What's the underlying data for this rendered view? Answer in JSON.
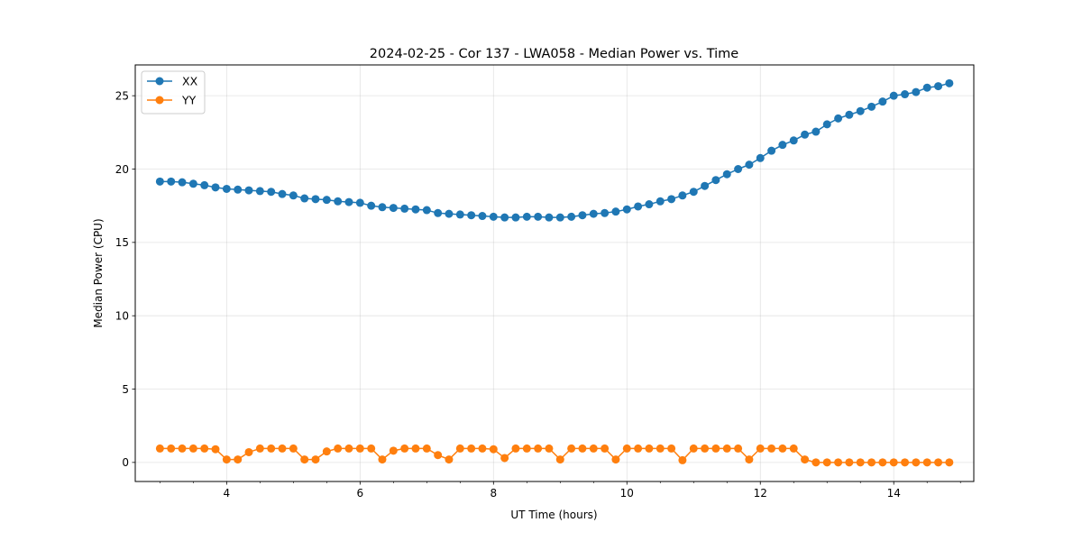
{
  "chart_data": {
    "type": "line",
    "title": "2024-02-25 - Cor 137 - LWA058 - Median Power vs. Time",
    "xlabel": "UT Time (hours)",
    "ylabel": "Median Power (CPU)",
    "xlim": [
      2.63,
      15.2
    ],
    "ylim": [
      -1.3,
      27.1
    ],
    "xticks": [
      4,
      6,
      8,
      10,
      12,
      14
    ],
    "xtick_labels": [
      "4",
      "6",
      "8",
      "10",
      "12",
      "14"
    ],
    "xminor_step": 0.5,
    "yticks": [
      0,
      5,
      10,
      15,
      20,
      25
    ],
    "ytick_labels": [
      "0",
      "5",
      "10",
      "15",
      "20",
      "25"
    ],
    "grid": true,
    "legend_position": "upper-left",
    "x": [
      3.0,
      3.167,
      3.333,
      3.5,
      3.667,
      3.833,
      4.0,
      4.167,
      4.333,
      4.5,
      4.667,
      4.833,
      5.0,
      5.167,
      5.333,
      5.5,
      5.667,
      5.833,
      6.0,
      6.167,
      6.333,
      6.5,
      6.667,
      6.833,
      7.0,
      7.167,
      7.333,
      7.5,
      7.667,
      7.833,
      8.0,
      8.167,
      8.333,
      8.5,
      8.667,
      8.833,
      9.0,
      9.167,
      9.333,
      9.5,
      9.667,
      9.833,
      10.0,
      10.167,
      10.333,
      10.5,
      10.667,
      10.833,
      11.0,
      11.167,
      11.333,
      11.5,
      11.667,
      11.833,
      12.0,
      12.167,
      12.333,
      12.5,
      12.667,
      12.833,
      13.0,
      13.167,
      13.333,
      13.5,
      13.667,
      13.833,
      14.0,
      14.167,
      14.333,
      14.5,
      14.667,
      14.833
    ],
    "series": [
      {
        "name": "XX",
        "color": "#1f77b4",
        "values": [
          19.15,
          19.15,
          19.1,
          19.0,
          18.9,
          18.75,
          18.65,
          18.6,
          18.55,
          18.5,
          18.45,
          18.3,
          18.2,
          18.0,
          17.95,
          17.9,
          17.8,
          17.75,
          17.7,
          17.5,
          17.4,
          17.35,
          17.3,
          17.25,
          17.2,
          17.0,
          16.95,
          16.9,
          16.85,
          16.8,
          16.75,
          16.7,
          16.7,
          16.75,
          16.75,
          16.7,
          16.7,
          16.75,
          16.85,
          16.95,
          17.0,
          17.1,
          17.25,
          17.45,
          17.6,
          17.8,
          17.95,
          18.2,
          18.45,
          18.85,
          19.25,
          19.65,
          20.0,
          20.3,
          20.75,
          21.25,
          21.65,
          21.95,
          22.35,
          22.55,
          23.05,
          23.45,
          23.7,
          23.95,
          24.25,
          24.6,
          25.0,
          25.1,
          25.25,
          25.55,
          25.65,
          25.85
        ]
      },
      {
        "name": "YY",
        "color": "#ff7f0e",
        "values": [
          0.95,
          0.95,
          0.95,
          0.95,
          0.95,
          0.9,
          0.2,
          0.2,
          0.7,
          0.95,
          0.95,
          0.95,
          0.95,
          0.2,
          0.2,
          0.75,
          0.95,
          0.95,
          0.95,
          0.95,
          0.2,
          0.8,
          0.95,
          0.95,
          0.95,
          0.5,
          0.2,
          0.95,
          0.95,
          0.95,
          0.9,
          0.3,
          0.95,
          0.95,
          0.95,
          0.95,
          0.2,
          0.95,
          0.95,
          0.95,
          0.95,
          0.2,
          0.95,
          0.95,
          0.95,
          0.95,
          0.95,
          0.15,
          0.95,
          0.95,
          0.95,
          0.95,
          0.95,
          0.2,
          0.95,
          0.95,
          0.95,
          0.95,
          0.2,
          0.0,
          0.0,
          0.0,
          0.0,
          0.0,
          0.0,
          0.0,
          0.0,
          0.0,
          0.0,
          0.0,
          0.0,
          0.0
        ]
      }
    ]
  }
}
